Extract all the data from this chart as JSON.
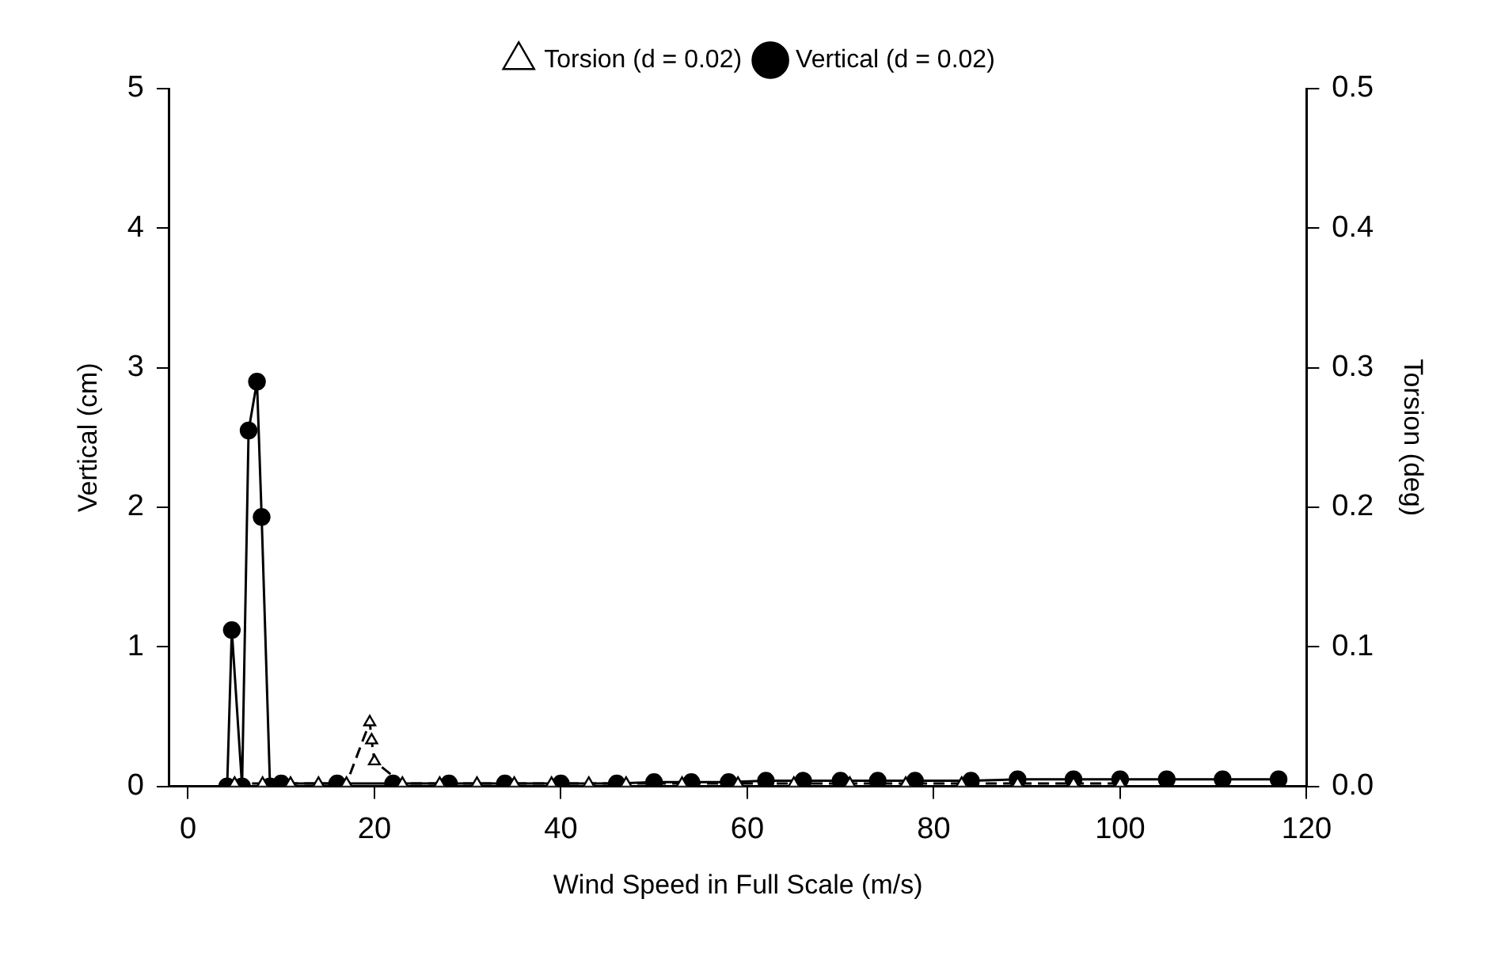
{
  "chart_data": {
    "type": "line",
    "xlabel": "Wind Speed in Full Scale (m/s)",
    "ylabel": "Vertical (cm)",
    "y2label": "Torsion (deg)",
    "xlim": [
      -2,
      120
    ],
    "xticks": [
      0,
      20,
      40,
      60,
      80,
      100,
      120
    ],
    "ylim": [
      0,
      5
    ],
    "yticks": [
      0,
      1,
      2,
      3,
      4,
      5
    ],
    "y2lim": [
      0,
      0.5
    ],
    "y2ticks": [
      {
        "value": 0,
        "label": "0.0"
      },
      {
        "value": 0.1,
        "label": "0.1"
      },
      {
        "value": 0.2,
        "label": "0.2"
      },
      {
        "value": 0.3,
        "label": "0.3"
      },
      {
        "value": 0.4,
        "label": "0.4"
      },
      {
        "value": 0.5,
        "label": "0.5"
      }
    ],
    "grid": false,
    "legend": "top",
    "series": [
      {
        "name": "Vertical (d = 0.02)",
        "color": "#000000",
        "marker": "circle",
        "line_style": "solid",
        "x": [
          4.2,
          4.7,
          5.8,
          6.5,
          7.4,
          7.9,
          8.8,
          10,
          16,
          22,
          28,
          34,
          40,
          46,
          50,
          54,
          58,
          62,
          66,
          70,
          74,
          78,
          84,
          89,
          95,
          100,
          105,
          111,
          117
        ],
        "values": [
          0,
          1.12,
          0,
          2.55,
          2.9,
          1.93,
          0,
          0.02,
          0.02,
          0.02,
          0.02,
          0.02,
          0.02,
          0.02,
          0.03,
          0.03,
          0.03,
          0.04,
          0.04,
          0.04,
          0.04,
          0.04,
          0.04,
          0.05,
          0.05,
          0.05,
          0.05,
          0.05,
          0.05
        ]
      },
      {
        "name": "Torsion (d = 0.02)",
        "color": "#000000",
        "marker": "triangle",
        "line_style": "dashed",
        "axis": "y2",
        "x": [
          5,
          8,
          11,
          14,
          17,
          19.5,
          19.7,
          20,
          23,
          27,
          31,
          35,
          39,
          43,
          47,
          53,
          59,
          65,
          71,
          77,
          83,
          89,
          95,
          100
        ],
        "values": [
          0.002,
          0.002,
          0.002,
          0.002,
          0.002,
          0.046,
          0.033,
          0.018,
          0.002,
          0.002,
          0.002,
          0.002,
          0.002,
          0.002,
          0.002,
          0.002,
          0.002,
          0.002,
          0.002,
          0.002,
          0.002,
          0.002,
          0.002,
          0.002
        ]
      }
    ]
  }
}
